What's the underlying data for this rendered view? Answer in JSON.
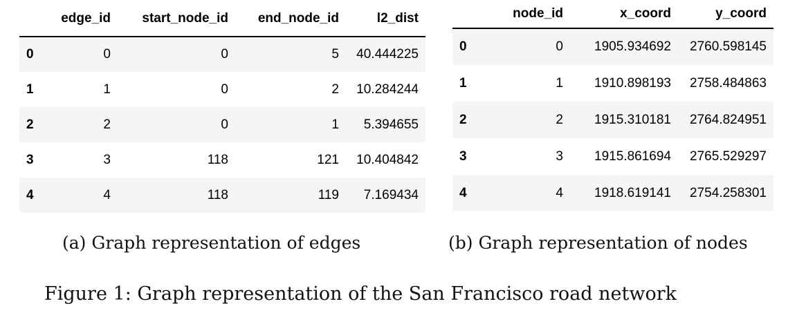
{
  "edges_table": {
    "columns": [
      "",
      "edge_id",
      "start_node_id",
      "end_node_id",
      "l2_dist"
    ],
    "rows": [
      {
        "index": "0",
        "edge_id": "0",
        "start_node_id": "0",
        "end_node_id": "5",
        "l2_dist": "40.444225"
      },
      {
        "index": "1",
        "edge_id": "1",
        "start_node_id": "0",
        "end_node_id": "2",
        "l2_dist": "10.284244"
      },
      {
        "index": "2",
        "edge_id": "2",
        "start_node_id": "0",
        "end_node_id": "1",
        "l2_dist": "5.394655"
      },
      {
        "index": "3",
        "edge_id": "3",
        "start_node_id": "118",
        "end_node_id": "121",
        "l2_dist": "10.404842"
      },
      {
        "index": "4",
        "edge_id": "4",
        "start_node_id": "118",
        "end_node_id": "119",
        "l2_dist": "7.169434"
      }
    ],
    "caption": "(a) Graph representation of edges"
  },
  "nodes_table": {
    "columns": [
      "",
      "node_id",
      "x_coord",
      "y_coord"
    ],
    "rows": [
      {
        "index": "0",
        "node_id": "0",
        "x_coord": "1905.934692",
        "y_coord": "2760.598145"
      },
      {
        "index": "1",
        "node_id": "1",
        "x_coord": "1910.898193",
        "y_coord": "2758.484863"
      },
      {
        "index": "2",
        "node_id": "2",
        "x_coord": "1915.310181",
        "y_coord": "2764.824951"
      },
      {
        "index": "3",
        "node_id": "3",
        "x_coord": "1915.861694",
        "y_coord": "2765.529297"
      },
      {
        "index": "4",
        "node_id": "4",
        "x_coord": "1918.619141",
        "y_coord": "2754.258301"
      }
    ],
    "caption": "(b) Graph representation of nodes"
  },
  "figure_caption": "Figure 1: Graph representation of the San Francisco road network"
}
